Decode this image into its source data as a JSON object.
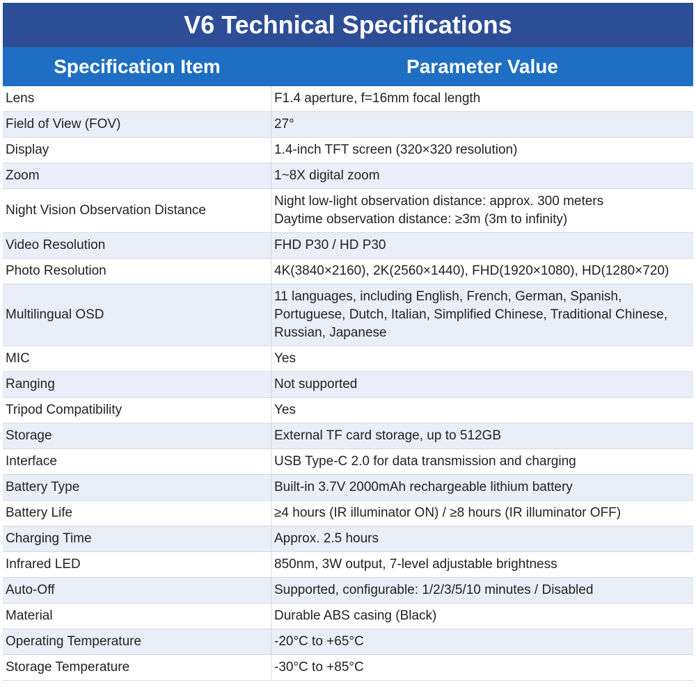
{
  "header": {
    "title": "V6 Technical Specifications",
    "columns": [
      "Specification Item",
      "Parameter Value"
    ]
  },
  "table": {
    "rows": [
      {
        "item": "Lens",
        "value": [
          "F1.4 aperture, f=16mm focal length"
        ]
      },
      {
        "item": "Field of View (FOV)",
        "value": [
          "27°"
        ]
      },
      {
        "item": "Display",
        "value": [
          "1.4-inch TFT screen (320×320 resolution)"
        ]
      },
      {
        "item": "Zoom",
        "value": [
          "1~8X digital zoom"
        ]
      },
      {
        "item": "Night Vision Observation Distance",
        "value": [
          "Night low-light observation distance: approx. 300 meters",
          "Daytime observation distance: ≥3m (3m to infinity)"
        ]
      },
      {
        "item": "Video Resolution",
        "value": [
          "FHD P30 / HD P30"
        ]
      },
      {
        "item": "Photo Resolution",
        "value": [
          "4K(3840×2160), 2K(2560×1440), FHD(1920×1080), HD(1280×720)"
        ]
      },
      {
        "item": "Multilingual OSD",
        "value": [
          "11 languages, including English, French, German, Spanish, Portuguese, Dutch, Italian, Simplified Chinese, Traditional Chinese, Russian, Japanese"
        ]
      },
      {
        "item": "MIC",
        "value": [
          "Yes"
        ]
      },
      {
        "item": "Ranging",
        "value": [
          "Not supported"
        ]
      },
      {
        "item": "Tripod Compatibility",
        "value": [
          "Yes"
        ]
      },
      {
        "item": "Storage",
        "value": [
          "External TF card storage, up to 512GB"
        ]
      },
      {
        "item": "Interface",
        "value": [
          "USB Type-C 2.0 for data transmission and charging"
        ]
      },
      {
        "item": "Battery Type",
        "value": [
          "Built-in 3.7V 2000mAh rechargeable lithium battery"
        ]
      },
      {
        "item": "Battery Life",
        "value": [
          "≥4 hours (IR illuminator ON) / ≥8 hours (IR illuminator OFF)"
        ]
      },
      {
        "item": "Charging Time",
        "value": [
          "Approx. 2.5 hours"
        ]
      },
      {
        "item": "Infrared LED",
        "value": [
          "850nm, 3W output, 7-level adjustable brightness"
        ]
      },
      {
        "item": "Auto-Off",
        "value": [
          "Supported, configurable: 1/2/3/5/10 minutes / Disabled"
        ]
      },
      {
        "item": "Material",
        "value": [
          "Durable ABS casing (Black)"
        ]
      },
      {
        "item": "Operating Temperature",
        "value": [
          "-20°C to +65°C"
        ]
      },
      {
        "item": "Storage Temperature",
        "value": [
          "-30°C to +85°C"
        ]
      }
    ]
  }
}
